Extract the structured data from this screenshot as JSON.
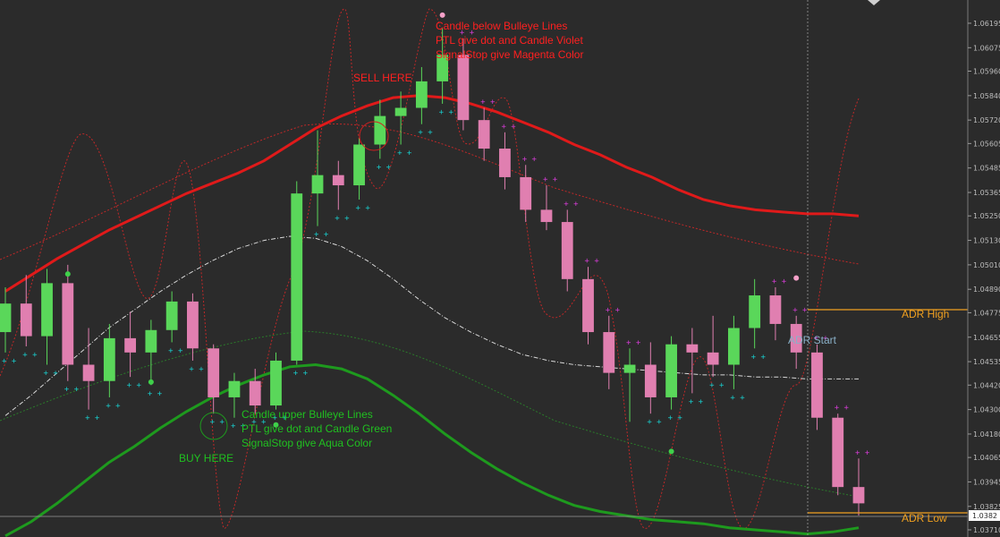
{
  "chart_data": {
    "type": "candlestick",
    "y_axis": {
      "position": "right",
      "range": [
        1.0371,
        1.0623
      ],
      "ticks": [
        "1.06195",
        "1.06075",
        "1.05960",
        "1.05840",
        "1.05720",
        "1.05605",
        "1.05485",
        "1.05365",
        "1.05250",
        "1.05130",
        "1.05010",
        "1.04890",
        "1.04775",
        "1.04655",
        "1.04535",
        "1.04420",
        "1.04300",
        "1.04180",
        "1.04065",
        "1.03945",
        "1.03825",
        "1.03710"
      ],
      "current_price": "1.0382"
    },
    "grid": false,
    "colors": {
      "background": "#2b2b2b",
      "bull_candle": "#5ad75a",
      "bear_candle": "#e07fb0",
      "neutral_candle": "#b2a59a",
      "upper_band": "#e01a1a",
      "lower_band": "#1e9a1e",
      "middle_line": "#d8d8d8",
      "dotted_red": "#c02828",
      "dotted_green": "#2a7a2a",
      "signal_aqua": "#19c9c9",
      "signal_magenta": "#d23cd2",
      "adr_line": "#f0a020",
      "annotation_red": "#ff2020",
      "annotation_green": "#20c020"
    },
    "annotations": {
      "sell_rule": [
        "Candle below Bulleye Lines",
        "PTL give dot and Candle Violet",
        "SignalStop give Magenta Color"
      ],
      "buy_rule": [
        "Candle upper Bulleye Lines",
        "PTL give dot and Candle Green",
        "SignalStop give Aqua Color"
      ],
      "sell_here": "SELL HERE",
      "buy_here": "BUY HERE",
      "adr_high": "ADR High",
      "adr_low": "ADR Low",
      "adr_start": "ADR Start"
    },
    "adr": {
      "high": 1.0476,
      "low": 1.0382
    },
    "upper_band": [
      1.0488,
      1.0496,
      1.0504,
      1.0511,
      1.0518,
      1.0524,
      1.053,
      1.0536,
      1.0541,
      1.0546,
      1.0552,
      1.056,
      1.0568,
      1.0574,
      1.0579,
      1.0583,
      1.0584,
      1.0583,
      1.058,
      1.0576,
      1.0571,
      1.0566,
      1.056,
      1.0555,
      1.0549,
      1.0544,
      1.0538,
      1.0533,
      1.053,
      1.0528,
      1.0527,
      1.0526,
      1.0526,
      1.0525
    ],
    "lower_band": [
      1.0368,
      1.0375,
      1.0384,
      1.0394,
      1.0404,
      1.0412,
      1.0421,
      1.0429,
      1.0436,
      1.0442,
      1.0447,
      1.0451,
      1.0452,
      1.045,
      1.0445,
      1.0437,
      1.0428,
      1.0418,
      1.0409,
      1.0401,
      1.0394,
      1.0388,
      1.0383,
      1.038,
      1.0378,
      1.0376,
      1.0375,
      1.0374,
      1.0372,
      1.0371,
      1.037,
      1.0369,
      1.037,
      1.0372
    ],
    "middle_line": [
      1.0427,
      1.0437,
      1.0448,
      1.0459,
      1.047,
      1.0479,
      1.0488,
      1.0496,
      1.0503,
      1.0509,
      1.0513,
      1.0515,
      1.0514,
      1.051,
      1.0503,
      1.0494,
      1.0484,
      1.0475,
      1.0468,
      1.0462,
      1.0457,
      1.0454,
      1.0452,
      1.0451,
      1.045,
      1.0449,
      1.0448,
      1.0447,
      1.0447,
      1.0446,
      1.0446,
      1.0445,
      1.0445,
      1.0445
    ],
    "candles": [
      {
        "o": 1.0468,
        "h": 1.049,
        "l": 1.0458,
        "c": 1.0482
      },
      {
        "o": 1.0482,
        "h": 1.0496,
        "l": 1.0461,
        "c": 1.0466
      },
      {
        "o": 1.0466,
        "h": 1.0499,
        "l": 1.0452,
        "c": 1.0492
      },
      {
        "o": 1.0492,
        "h": 1.0501,
        "l": 1.0444,
        "c": 1.0452
      },
      {
        "o": 1.0452,
        "h": 1.047,
        "l": 1.043,
        "c": 1.0444
      },
      {
        "o": 1.0444,
        "h": 1.0472,
        "l": 1.0436,
        "c": 1.0465
      },
      {
        "o": 1.0465,
        "h": 1.0478,
        "l": 1.0446,
        "c": 1.0458
      },
      {
        "o": 1.0458,
        "h": 1.0474,
        "l": 1.0442,
        "c": 1.0469
      },
      {
        "o": 1.0469,
        "h": 1.0488,
        "l": 1.0463,
        "c": 1.0483
      },
      {
        "o": 1.0483,
        "h": 1.0487,
        "l": 1.0454,
        "c": 1.046
      },
      {
        "o": 1.046,
        "h": 1.0462,
        "l": 1.0428,
        "c": 1.0436
      },
      {
        "o": 1.0436,
        "h": 1.0448,
        "l": 1.0426,
        "c": 1.0444
      },
      {
        "o": 1.0444,
        "h": 1.045,
        "l": 1.0428,
        "c": 1.0432
      },
      {
        "o": 1.0432,
        "h": 1.0458,
        "l": 1.043,
        "c": 1.0454
      },
      {
        "o": 1.0454,
        "h": 1.0542,
        "l": 1.0452,
        "c": 1.0536
      },
      {
        "o": 1.0536,
        "h": 1.0567,
        "l": 1.052,
        "c": 1.0545
      },
      {
        "o": 1.0545,
        "h": 1.0552,
        "l": 1.0528,
        "c": 1.054
      },
      {
        "o": 1.054,
        "h": 1.0563,
        "l": 1.0533,
        "c": 1.056
      },
      {
        "o": 1.056,
        "h": 1.0582,
        "l": 1.0553,
        "c": 1.0574
      },
      {
        "o": 1.0574,
        "h": 1.0586,
        "l": 1.056,
        "c": 1.0578
      },
      {
        "o": 1.0578,
        "h": 1.0598,
        "l": 1.057,
        "c": 1.0591
      },
      {
        "o": 1.0591,
        "h": 1.0617,
        "l": 1.058,
        "c": 1.0604
      },
      {
        "o": 1.0604,
        "h": 1.0612,
        "l": 1.0567,
        "c": 1.0572
      },
      {
        "o": 1.0572,
        "h": 1.0578,
        "l": 1.0552,
        "c": 1.0558
      },
      {
        "o": 1.0558,
        "h": 1.0566,
        "l": 1.0538,
        "c": 1.0544
      },
      {
        "o": 1.0544,
        "h": 1.055,
        "l": 1.0522,
        "c": 1.0528
      },
      {
        "o": 1.0528,
        "h": 1.054,
        "l": 1.0518,
        "c": 1.0522
      },
      {
        "o": 1.0522,
        "h": 1.0528,
        "l": 1.0488,
        "c": 1.0494
      },
      {
        "o": 1.0494,
        "h": 1.05,
        "l": 1.0462,
        "c": 1.0468
      },
      {
        "o": 1.0468,
        "h": 1.0476,
        "l": 1.044,
        "c": 1.0448
      },
      {
        "o": 1.0448,
        "h": 1.046,
        "l": 1.0424,
        "c": 1.0452
      },
      {
        "o": 1.0452,
        "h": 1.0463,
        "l": 1.0428,
        "c": 1.0436
      },
      {
        "o": 1.0436,
        "h": 1.0466,
        "l": 1.043,
        "c": 1.0462
      },
      {
        "o": 1.0462,
        "h": 1.047,
        "l": 1.0438,
        "c": 1.0458
      },
      {
        "o": 1.0458,
        "h": 1.0476,
        "l": 1.0446,
        "c": 1.0452
      },
      {
        "o": 1.0452,
        "h": 1.0476,
        "l": 1.044,
        "c": 1.047
      },
      {
        "o": 1.047,
        "h": 1.0494,
        "l": 1.046,
        "c": 1.0486
      },
      {
        "o": 1.0486,
        "h": 1.049,
        "l": 1.0464,
        "c": 1.0472
      },
      {
        "o": 1.0472,
        "h": 1.0476,
        "l": 1.045,
        "c": 1.0458
      },
      {
        "o": 1.0458,
        "h": 1.0462,
        "l": 1.042,
        "c": 1.0426
      },
      {
        "o": 1.0426,
        "h": 1.0428,
        "l": 1.0388,
        "c": 1.0392
      },
      {
        "o": 1.0392,
        "h": 1.0406,
        "l": 1.0378,
        "c": 1.0384
      }
    ],
    "sell_signal_dots": [
      {
        "i": 21,
        "p": 1.062
      },
      {
        "i": 38,
        "p": 1.0491
      }
    ],
    "buy_signal_dots": [
      {
        "i": 13,
        "p": 1.0426
      },
      {
        "i": 3,
        "p": 1.05
      },
      {
        "i": 7,
        "p": 1.0447
      },
      {
        "i": 32,
        "p": 1.0413
      }
    ]
  }
}
